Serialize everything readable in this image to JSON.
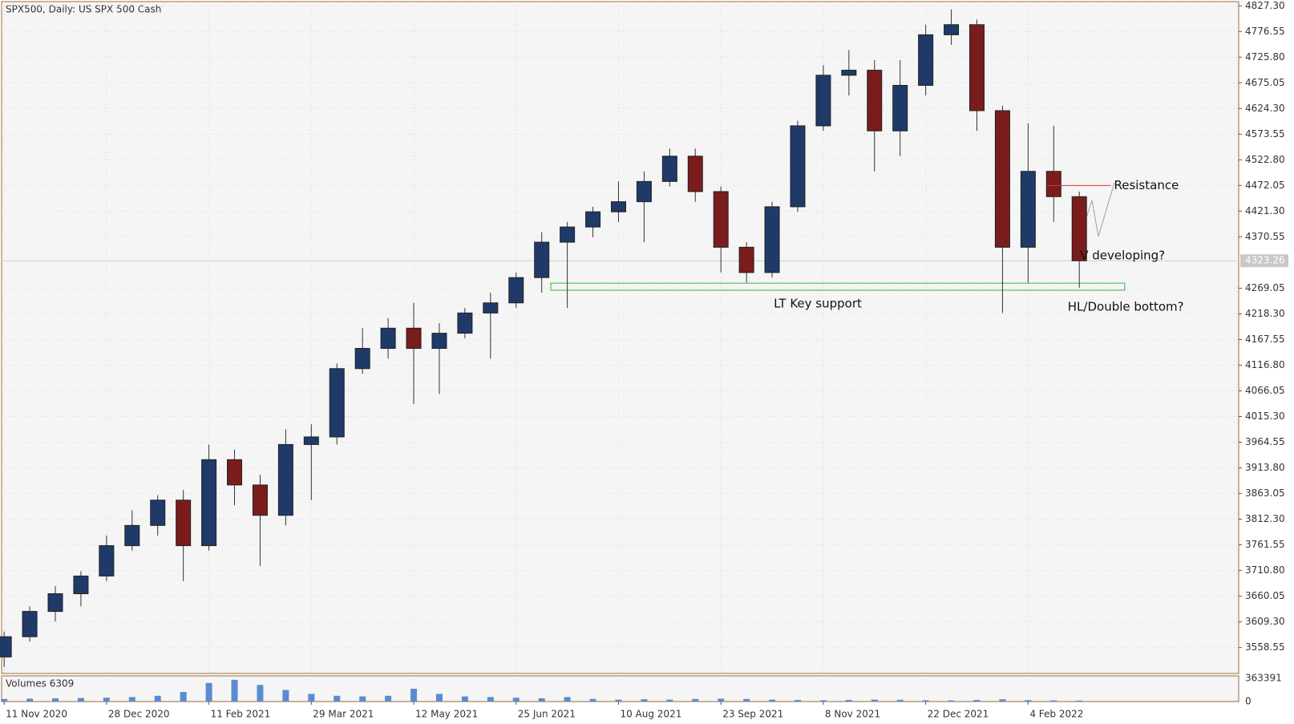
{
  "chart_data": {
    "type": "candlestick",
    "title": "SPX500, Daily:  US SPX 500 Cash",
    "categories": [
      "11 Nov 2020",
      null,
      null,
      null,
      "28 Dec 2020",
      null,
      null,
      null,
      "11 Feb 2021",
      null,
      null,
      null,
      "29 Mar 2021",
      null,
      null,
      null,
      "12 May 2021",
      null,
      null,
      null,
      "25 Jun 2021",
      null,
      null,
      null,
      "10 Aug 2021",
      null,
      null,
      null,
      "23 Sep 2021",
      null,
      null,
      null,
      "8 Nov 2021",
      null,
      null,
      null,
      "22 Dec 2021",
      null,
      null,
      null,
      "4 Feb 2022",
      null,
      null
    ],
    "open": [
      3540,
      3580,
      3630,
      3665,
      3700,
      3760,
      3800,
      3850,
      3760,
      3930,
      3880,
      3820,
      3960,
      3975,
      4110,
      4150,
      4190,
      4150,
      4180,
      4220,
      4240,
      4290,
      4360,
      4390,
      4420,
      4440,
      4480,
      4530,
      4460,
      4350,
      4300,
      4430,
      4590,
      4690,
      4700,
      4580,
      4670,
      4770,
      4790,
      4620,
      4350,
      4500,
      4450
    ],
    "high": [
      3590,
      3640,
      3680,
      3710,
      3780,
      3830,
      3860,
      3870,
      3960,
      3950,
      3900,
      3990,
      4000,
      4120,
      4190,
      4210,
      4240,
      4200,
      4230,
      4260,
      4300,
      4380,
      4400,
      4430,
      4480,
      4500,
      4545,
      4545,
      4470,
      4360,
      4440,
      4600,
      4710,
      4740,
      4720,
      4720,
      4790,
      4820,
      4800,
      4630,
      4595,
      4590,
      4460
    ],
    "low": [
      3520,
      3570,
      3610,
      3640,
      3690,
      3750,
      3780,
      3690,
      3750,
      3840,
      3720,
      3800,
      3850,
      3960,
      4100,
      4130,
      4040,
      4060,
      4170,
      4130,
      4230,
      4260,
      4230,
      4370,
      4400,
      4360,
      4470,
      4440,
      4300,
      4280,
      4290,
      4420,
      4580,
      4650,
      4500,
      4530,
      4650,
      4750,
      4580,
      4220,
      4280,
      4400,
      4270
    ],
    "close": [
      3580,
      3630,
      3665,
      3700,
      3760,
      3800,
      3850,
      3760,
      3930,
      3880,
      3820,
      3960,
      3975,
      4110,
      4150,
      4190,
      4150,
      4180,
      4220,
      4240,
      4290,
      4360,
      4390,
      4420,
      4440,
      4480,
      4530,
      4460,
      4350,
      4300,
      4430,
      4590,
      4690,
      4700,
      4580,
      4670,
      4770,
      4790,
      4620,
      4350,
      4500,
      4450,
      4323.26
    ],
    "up_color": "#1f3a68",
    "down_color": "#7a1c1c",
    "ylim": [
      3507.3,
      4835.6
    ],
    "yticks": [
      {
        "value": 4827.3,
        "label": "4827.30"
      },
      4776.55,
      {
        "value": 4725.8,
        "label": "4725.80"
      },
      4675.05,
      {
        "value": 4624.3,
        "label": "4624.30"
      },
      4573.55,
      {
        "value": 4522.8,
        "label": "4522.80"
      },
      4472.05,
      {
        "value": 4421.3,
        "label": "4421.30"
      },
      4370.55,
      4269.05,
      {
        "value": 4218.3,
        "label": "4218.30"
      },
      4167.55,
      {
        "value": 4116.8,
        "label": "4116.80"
      },
      4066.05,
      {
        "value": 4015.3,
        "label": "4015.30"
      },
      3964.55,
      {
        "value": 3913.8,
        "label": "3913.80"
      },
      3863.05,
      {
        "value": 3812.3,
        "label": "3812.30"
      },
      3761.55,
      {
        "value": 3710.8,
        "label": "3710.80"
      },
      3660.05,
      {
        "value": 3609.3,
        "label": "3609.30"
      },
      3558.55
    ],
    "grid": true,
    "last_price": 4323.26,
    "resistance": {
      "text": "Resistance",
      "level": 4472,
      "color": "#e03030"
    },
    "support": {
      "text": "LT Key support",
      "low": 4265,
      "high": 4279,
      "color": "#3cb043"
    },
    "notes": [
      "V developing?",
      "HL/Double bottom?"
    ],
    "volume": {
      "label": "Volumes 6309",
      "ylim": [
        0,
        363391
      ],
      "yticks": [
        363391,
        0
      ],
      "color": "#5b8bd0",
      "values": [
        40000,
        45000,
        50000,
        55000,
        60000,
        70000,
        90000,
        150000,
        290000,
        340000,
        260000,
        180000,
        120000,
        90000,
        80000,
        90000,
        200000,
        120000,
        80000,
        70000,
        60000,
        50000,
        70000,
        40000,
        30000,
        35000,
        30000,
        40000,
        45000,
        40000,
        30000,
        25000,
        20000,
        25000,
        30000,
        28000,
        20000,
        18000,
        25000,
        35000,
        22000,
        18000,
        15000
      ]
    }
  }
}
